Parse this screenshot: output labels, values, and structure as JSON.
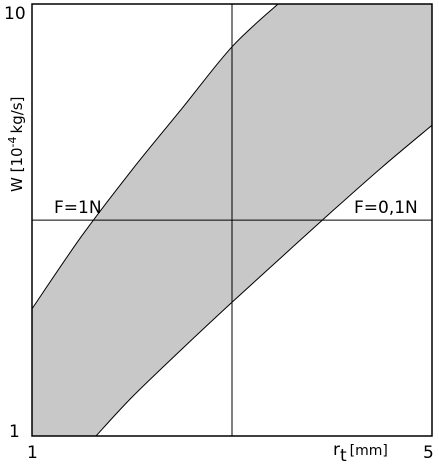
{
  "chart_data": {
    "type": "area",
    "xlabel": "r",
    "xlabel_sub": "t",
    "xlabel_unit": "[mm]",
    "ylabel": "W [10-4 kg/s]",
    "ylabel_base": "W [10",
    "ylabel_exp": "-4",
    "ylabel_unit": "kg/s]",
    "x_ticks": [
      "1",
      "5"
    ],
    "y_ticks": [
      "1",
      "10"
    ],
    "xlim": [
      1,
      5
    ],
    "ylim": [
      1,
      10
    ],
    "y_scale": "log",
    "grid": false,
    "reference_lines": {
      "x": 3,
      "y": 3.16
    },
    "annotations": [
      {
        "text": "F=1N",
        "x": 1.4,
        "y": 3.16
      },
      {
        "text": "F=0,1N",
        "x": 4.6,
        "y": 3.16
      }
    ],
    "band": {
      "fill": "#c8c8c8",
      "upper": [
        {
          "x": 1.0,
          "y": 1.97
        },
        {
          "x": 1.5,
          "y": 2.91
        },
        {
          "x": 2.0,
          "y": 4.13
        },
        {
          "x": 2.5,
          "y": 5.73
        },
        {
          "x": 3.0,
          "y": 7.96
        },
        {
          "x": 3.46,
          "y": 10.0
        }
      ],
      "lower": [
        {
          "x": 1.64,
          "y": 1.0
        },
        {
          "x": 2.0,
          "y": 1.23
        },
        {
          "x": 2.5,
          "y": 1.59
        },
        {
          "x": 3.0,
          "y": 2.04
        },
        {
          "x": 3.5,
          "y": 2.6
        },
        {
          "x": 4.0,
          "y": 3.31
        },
        {
          "x": 4.5,
          "y": 4.19
        },
        {
          "x": 5.0,
          "y": 5.24
        }
      ]
    }
  }
}
